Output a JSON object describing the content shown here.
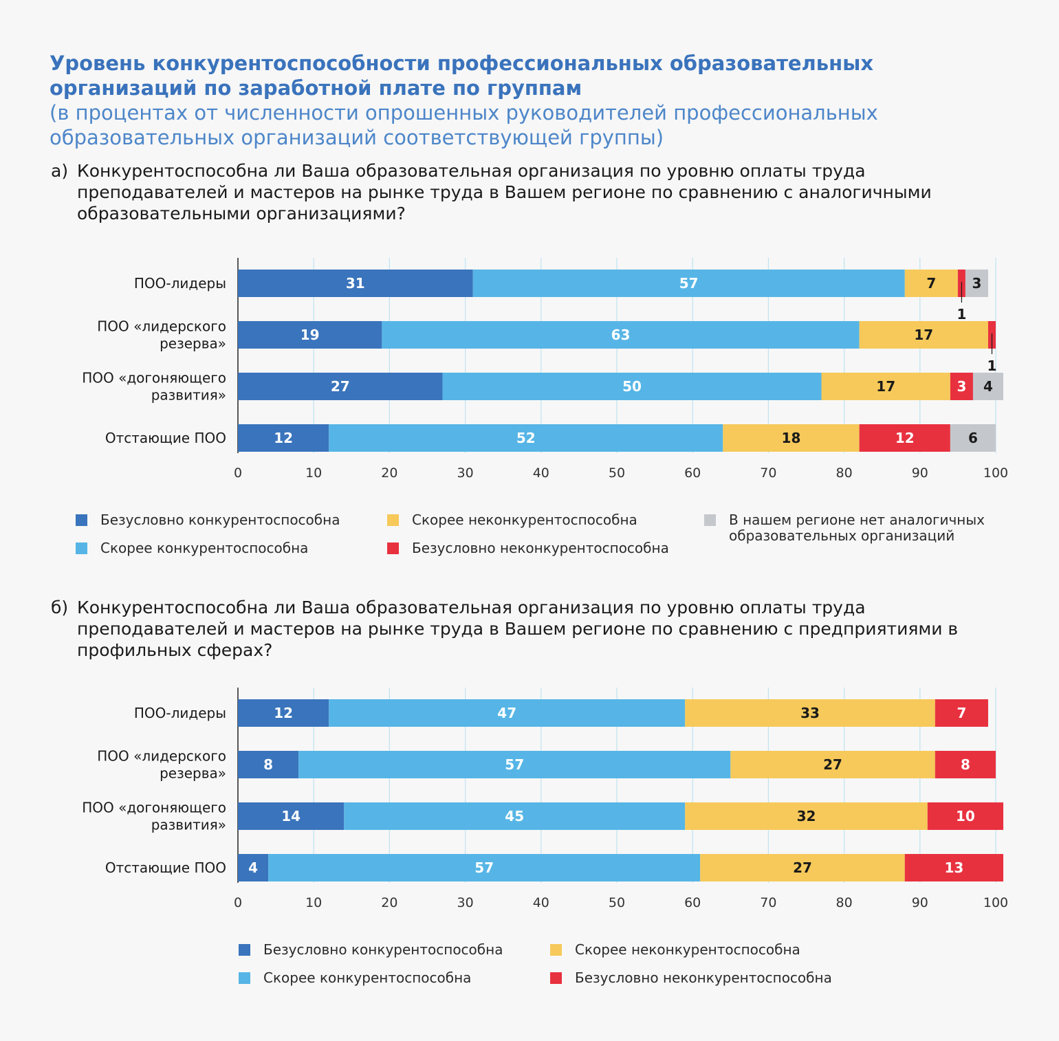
{
  "header": {
    "title": "Уровень конкурентоспособности профессиональных образовательных организаций по заработной плате по группам",
    "subtitle": "(в процентах от численности опрошенных руководителей профессиональных образовательных организаций соответствующей группы)"
  },
  "colors": {
    "dark_blue": "#3a74bc",
    "light_blue": "#56b5e6",
    "yellow": "#f6c95a",
    "red": "#e8313f",
    "gray": "#c4c8cc"
  },
  "questions": {
    "a_letter": "а)",
    "a_text": "Конкурентоспособна ли Ваша образовательная организация по уровню оплаты труда преподавателей и мастеров на рынке труда в Вашем регионе по сравнению с аналогичными образовательными организациями?",
    "b_letter": "б)",
    "b_text": "Конкурентоспособна ли Ваша образовательная организация по уровню оплаты труда преподавателей и мастеров на рынке труда в Вашем регионе по сравнению с предприятиями в профильных сферах?"
  },
  "legend_a": [
    {
      "label": "Безусловно конкурентоспособна",
      "color": "#3a74bc"
    },
    {
      "label": "Скорее конкурентоспособна",
      "color": "#56b5e6"
    },
    {
      "label": "Скорее неконкурентоспособна",
      "color": "#f6c95a"
    },
    {
      "label": "Безусловно неконкурентоспособна",
      "color": "#e8313f"
    },
    {
      "label": "В нашем регионе нет аналогичных образовательных организаций",
      "color": "#c4c8cc"
    }
  ],
  "legend_b": [
    {
      "label": "Безусловно конкурентоспособна",
      "color": "#3a74bc"
    },
    {
      "label": "Скорее конкурентоспособна",
      "color": "#56b5e6"
    },
    {
      "label": "Скорее неконкурентоспособна",
      "color": "#f6c95a"
    },
    {
      "label": "Безусловно неконкурентоспособна",
      "color": "#e8313f"
    }
  ],
  "chart_data": [
    {
      "type": "bar",
      "orientation": "horizontal",
      "stacked": true,
      "categories": [
        [
          "ПОО-лидеры"
        ],
        [
          "ПОО «лидерского",
          "резерва»"
        ],
        [
          "ПОО «догоняющего",
          "развития»"
        ],
        [
          "Отстающие ПОО"
        ]
      ],
      "xlim": [
        0,
        100
      ],
      "xticks": [
        0,
        10,
        20,
        30,
        40,
        50,
        60,
        70,
        80,
        90,
        100
      ],
      "grid": true,
      "series": [
        {
          "name": "Безусловно конкурентоспособна",
          "color": "#3a74bc",
          "values": [
            31,
            19,
            27,
            12
          ]
        },
        {
          "name": "Скорее конкурентоспособна",
          "color": "#56b5e6",
          "values": [
            57,
            63,
            50,
            52
          ]
        },
        {
          "name": "Скорее неконкурентоспособна",
          "color": "#f6c95a",
          "values": [
            7,
            17,
            17,
            18
          ]
        },
        {
          "name": "Безусловно неконкурентоспособна",
          "color": "#e8313f",
          "values": [
            1,
            1,
            3,
            12
          ]
        },
        {
          "name": "В нашем регионе нет аналогичных образовательных организаций",
          "color": "#c4c8cc",
          "values": [
            3,
            0,
            4,
            6
          ]
        }
      ]
    },
    {
      "type": "bar",
      "orientation": "horizontal",
      "stacked": true,
      "categories": [
        [
          "ПОО-лидеры"
        ],
        [
          "ПОО «лидерского",
          "резерва»"
        ],
        [
          "ПОО «догоняющего",
          "развития»"
        ],
        [
          "Отстающие ПОО"
        ]
      ],
      "xlim": [
        0,
        100
      ],
      "xticks": [
        0,
        10,
        20,
        30,
        40,
        50,
        60,
        70,
        80,
        90,
        100
      ],
      "grid": true,
      "series": [
        {
          "name": "Безусловно конкурентоспособна",
          "color": "#3a74bc",
          "values": [
            12,
            8,
            14,
            4
          ]
        },
        {
          "name": "Скорее конкурентоспособна",
          "color": "#56b5e6",
          "values": [
            47,
            57,
            45,
            57
          ]
        },
        {
          "name": "Скорее неконкурентоспособна",
          "color": "#f6c95a",
          "values": [
            33,
            27,
            32,
            27
          ]
        },
        {
          "name": "Безусловно неконкурентоспособна",
          "color": "#e8313f",
          "values": [
            7,
            8,
            10,
            13
          ]
        }
      ]
    }
  ]
}
